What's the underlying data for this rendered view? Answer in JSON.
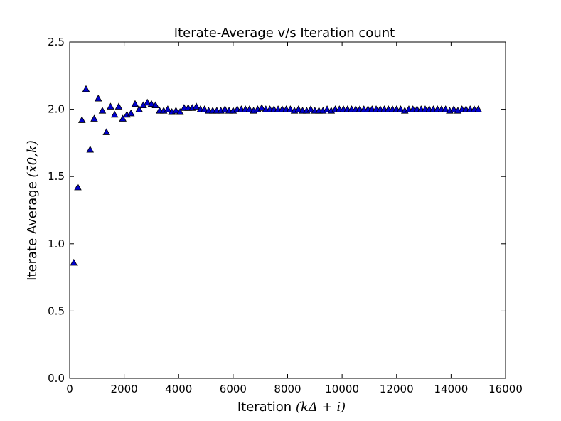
{
  "chart_data": {
    "type": "scatter",
    "title": "Iterate-Average v/s Iteration count",
    "xlabel": "Iteration",
    "xlabel_math": "(kΔ + i)",
    "ylabel": "Iterate Average",
    "ylabel_math": "(x̄0,k)",
    "xlim": [
      0,
      16000
    ],
    "ylim": [
      0.0,
      2.5
    ],
    "x_ticks": [
      0,
      2000,
      4000,
      6000,
      8000,
      10000,
      12000,
      14000,
      16000
    ],
    "y_ticks": [
      "0.0",
      "0.5",
      "1.0",
      "1.5",
      "2.0",
      "2.5"
    ],
    "grid": false,
    "marker": "triangle-up",
    "marker_color": "#0000cc",
    "marker_edge_color": "#000000",
    "x": [
      150,
      300,
      450,
      600,
      750,
      900,
      1050,
      1200,
      1350,
      1500,
      1650,
      1800,
      1950,
      2100,
      2250,
      2400,
      2550,
      2700,
      2850,
      3000,
      3150,
      3300,
      3450,
      3600,
      3750,
      3900,
      4050,
      4200,
      4350,
      4500,
      4650,
      4800,
      4950,
      5100,
      5250,
      5400,
      5550,
      5700,
      5850,
      6000,
      6150,
      6300,
      6450,
      6600,
      6750,
      6900,
      7050,
      7200,
      7350,
      7500,
      7650,
      7800,
      7950,
      8100,
      8250,
      8400,
      8550,
      8700,
      8850,
      9000,
      9150,
      9300,
      9450,
      9600,
      9750,
      9900,
      10050,
      10200,
      10350,
      10500,
      10650,
      10800,
      10950,
      11100,
      11250,
      11400,
      11550,
      11700,
      11850,
      12000,
      12150,
      12300,
      12450,
      12600,
      12750,
      12900,
      13050,
      13200,
      13350,
      13500,
      13650,
      13800,
      13950,
      14100,
      14250,
      14400,
      14550,
      14700,
      14850,
      15000
    ],
    "y": [
      0.86,
      1.42,
      1.92,
      2.15,
      1.7,
      1.93,
      2.08,
      1.99,
      1.83,
      2.02,
      1.96,
      2.02,
      1.93,
      1.96,
      1.97,
      2.04,
      2.0,
      2.03,
      2.05,
      2.04,
      2.03,
      1.99,
      1.99,
      2.0,
      1.98,
      1.99,
      1.98,
      2.01,
      2.01,
      2.01,
      2.02,
      2.0,
      2.0,
      1.99,
      1.99,
      1.99,
      1.99,
      2.0,
      1.99,
      1.99,
      2.0,
      2.0,
      2.0,
      2.0,
      1.99,
      2.0,
      2.01,
      2.0,
      2.0,
      2.0,
      2.0,
      2.0,
      2.0,
      2.0,
      1.99,
      2.0,
      1.99,
      1.99,
      2.0,
      1.99,
      1.99,
      1.99,
      2.0,
      1.99,
      2.0,
      2.0,
      2.0,
      2.0,
      2.0,
      2.0,
      2.0,
      2.0,
      2.0,
      2.0,
      2.0,
      2.0,
      2.0,
      2.0,
      2.0,
      2.0,
      2.0,
      1.99,
      2.0,
      2.0,
      2.0,
      2.0,
      2.0,
      2.0,
      2.0,
      2.0,
      2.0,
      2.0,
      1.99,
      2.0,
      1.99,
      2.0,
      2.0,
      2.0,
      2.0,
      2.0
    ]
  }
}
